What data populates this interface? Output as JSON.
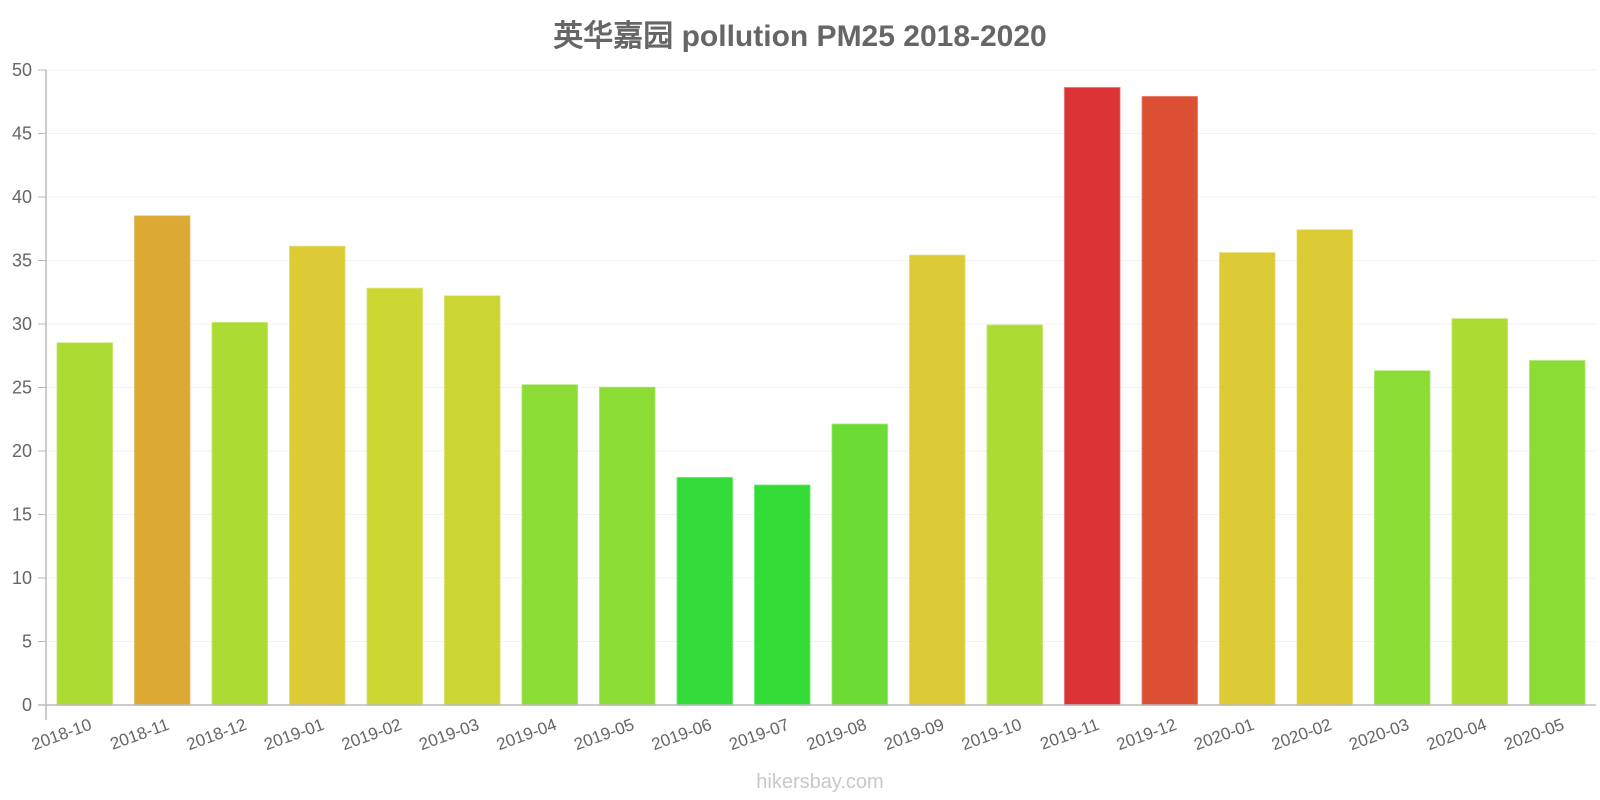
{
  "chart_data": {
    "type": "bar",
    "title": "英华嘉园 pollution PM25 2018-2020",
    "xlabel": "",
    "ylabel": "",
    "ylim": [
      0,
      50
    ],
    "yticks": [
      0,
      5,
      10,
      15,
      20,
      25,
      30,
      35,
      40,
      45,
      50
    ],
    "grid": true,
    "legend": null,
    "categories": [
      "2018-10",
      "2018-11",
      "2018-12",
      "2019-01",
      "2019-02",
      "2019-03",
      "2019-04",
      "2019-05",
      "2019-06",
      "2019-07",
      "2019-08",
      "2019-09",
      "2019-10",
      "2019-11",
      "2019-12",
      "2020-01",
      "2020-02",
      "2020-03",
      "2020-04",
      "2020-05"
    ],
    "values": [
      28.5,
      38.5,
      30.1,
      36.1,
      32.8,
      32.2,
      25.2,
      25.0,
      17.9,
      17.3,
      22.1,
      35.4,
      29.9,
      48.6,
      47.9,
      35.6,
      37.4,
      26.3,
      30.4,
      27.1
    ],
    "colors": [
      "#acdc34",
      "#dca934",
      "#acdc34",
      "#dccb34",
      "#cbd834",
      "#cbd634",
      "#8bdc34",
      "#8bdc34",
      "#34dc3a",
      "#34dc38",
      "#6cdc34",
      "#dccb34",
      "#acdc34",
      "#dc3434",
      "#dc5034",
      "#dccb34",
      "#dccb34",
      "#8bdc34",
      "#acdc34",
      "#8bdc34"
    ]
  },
  "watermark": "hikersbay.com"
}
